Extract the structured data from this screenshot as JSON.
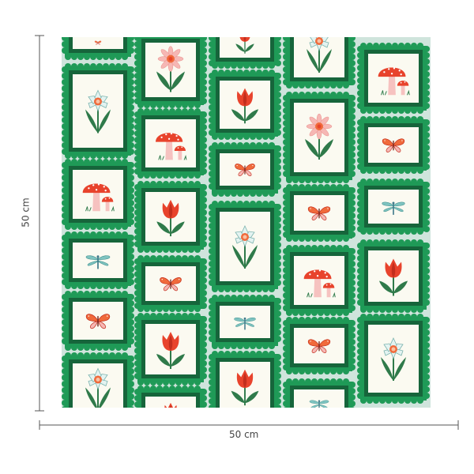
{
  "dimensions": {
    "width_label": "50 cm",
    "height_label": "50 cm"
  },
  "colors": {
    "background_mint": "#cfe4dc",
    "stamp_outer_green": "#1f9a57",
    "stamp_inner_green": "#16653b",
    "stamp_paper": "#fbfaf1",
    "motif_red": "#e8432c",
    "motif_pink": "#f6b7b4",
    "motif_leaf": "#2f7a4a",
    "motif_teal": "#5fa9a6",
    "dimension_line": "#555555"
  },
  "motifs": [
    "tulip",
    "daisy",
    "daffodil",
    "mushroom",
    "butterfly",
    "dragonfly"
  ]
}
